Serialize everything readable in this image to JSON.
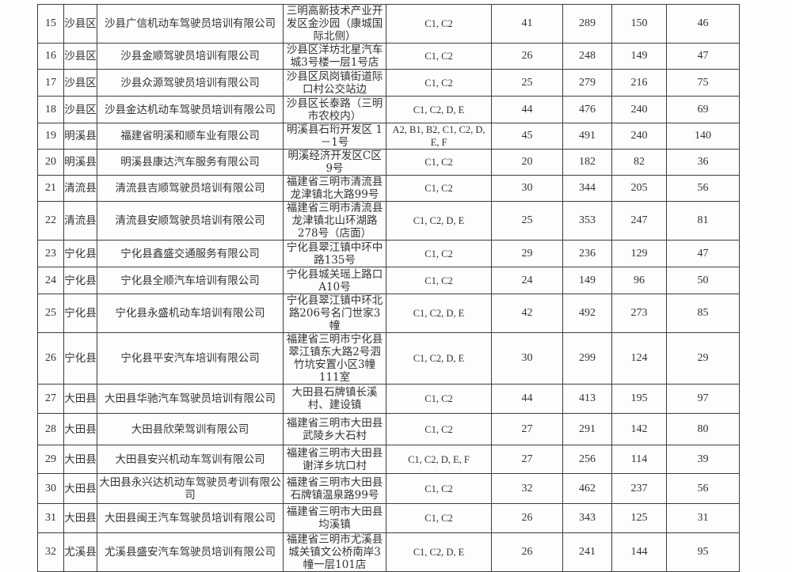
{
  "rows": [
    {
      "no": "15",
      "district": "沙县区",
      "company": "沙县广信机动车驾驶员培训有限公司",
      "address": "三明高新技术产业开发区金沙园（康城国际北侧）",
      "licenses": "C1, C2",
      "c1": "41",
      "c2": "289",
      "c3": "150",
      "c4": "46"
    },
    {
      "no": "16",
      "district": "沙县区",
      "company": "沙县金顺驾驶员培训有限公司",
      "address": "沙县区洋坊北星汽车城3号楼一层1号店",
      "licenses": "C1, C2",
      "c1": "26",
      "c2": "248",
      "c3": "149",
      "c4": "47"
    },
    {
      "no": "17",
      "district": "沙县区",
      "company": "沙县众源驾驶员培训有限公司",
      "address": "沙县区凤岗镇街道际口村公交站边",
      "licenses": "C1, C2",
      "c1": "25",
      "c2": "279",
      "c3": "216",
      "c4": "75"
    },
    {
      "no": "18",
      "district": "沙县区",
      "company": "沙县金达机动车驾驶员培训有限公司",
      "address": "沙县区长泰路（三明市农校内）",
      "licenses": "C1, C2, D, E",
      "c1": "44",
      "c2": "476",
      "c3": "240",
      "c4": "69"
    },
    {
      "no": "19",
      "district": "明溪县",
      "company": "福建省明溪和顺车业有限公司",
      "address": "明溪县石珩开发区 1 －1号",
      "licenses": "A2, B1, B2, C1, C2, D, E, F",
      "c1": "45",
      "c2": "491",
      "c3": "240",
      "c4": "140"
    },
    {
      "no": "20",
      "district": "明溪县",
      "company": "明溪县康达汽车服务有限公司",
      "address": "明溪经济开发区C区9号",
      "licenses": "C1, C2",
      "c1": "20",
      "c2": "182",
      "c3": "82",
      "c4": "36"
    },
    {
      "no": "21",
      "district": "清流县",
      "company": "清流县吉顺驾驶员培训有限公司",
      "address": "福建省三明市清流县龙津镇北大路99号",
      "licenses": "C1, C2",
      "c1": "30",
      "c2": "344",
      "c3": "205",
      "c4": "56"
    },
    {
      "no": "22",
      "district": "清流县",
      "company": "清流县安顺驾驶员培训有限公司",
      "address": "福建省三明市清流县龙津镇北山环湖路278号（店面）",
      "licenses": "C1, C2, D, E",
      "c1": "25",
      "c2": "353",
      "c3": "247",
      "c4": "81"
    },
    {
      "no": "23",
      "district": "宁化县",
      "company": "宁化县鑫盛交通服务有限公司",
      "address": "宁化县翠江镇中环中路135号",
      "licenses": "C1, C2",
      "c1": "29",
      "c2": "236",
      "c3": "129",
      "c4": "47"
    },
    {
      "no": "24",
      "district": "宁化县",
      "company": "宁化县全顺汽车培训有限公司",
      "address": "宁化县城关瑶上路口A10号",
      "licenses": "C1, C2",
      "c1": "24",
      "c2": "149",
      "c3": "96",
      "c4": "50"
    },
    {
      "no": "25",
      "district": "宁化县",
      "company": "宁化县永盛机动车培训有限公司",
      "address": "宁化县翠江镇中环北路206号名门世家3幢",
      "licenses": "C1, C2, D, E",
      "c1": "42",
      "c2": "492",
      "c3": "273",
      "c4": "85"
    },
    {
      "no": "26",
      "district": "宁化县",
      "company": "宁化县平安汽车培训有限公司",
      "address": "福建省三明市宁化县翠江镇东大路2号泗竹坑安置小区3幢111室",
      "licenses": "C1, C2, D, E",
      "c1": "30",
      "c2": "299",
      "c3": "124",
      "c4": "29"
    },
    {
      "no": "27",
      "district": "大田县",
      "company": "大田县华驰汽车驾驶员培训有限公司",
      "address": "大田县石牌镇长溪村、建设镇",
      "licenses": "C1, C2",
      "c1": "44",
      "c2": "413",
      "c3": "195",
      "c4": "97"
    },
    {
      "no": "28",
      "district": "大田县",
      "company": "大田县欣荣驾训有限公司",
      "address": "福建省三明市大田县武陵乡大石村",
      "licenses": "C1, C2",
      "c1": "27",
      "c2": "291",
      "c3": "142",
      "c4": "80"
    },
    {
      "no": "29",
      "district": "大田县",
      "company": "大田县安兴机动车驾训有限公司",
      "address": "福建省三明市大田县谢洋乡坑口村",
      "licenses": "C1, C2, D, E, F",
      "c1": "27",
      "c2": "256",
      "c3": "114",
      "c4": "39"
    },
    {
      "no": "30",
      "district": "大田县",
      "company": "大田县永兴达机动车驾驶员考训有限公司",
      "address": "福建省三明市大田县石牌镇温泉路99号",
      "licenses": "C1, C2",
      "c1": "32",
      "c2": "462",
      "c3": "237",
      "c4": "56"
    },
    {
      "no": "31",
      "district": "大田县",
      "company": "大田县闽王汽车驾驶员培训有限公司",
      "address": "福建省三明市大田县均溪镇",
      "licenses": "C1, C2",
      "c1": "26",
      "c2": "343",
      "c3": "125",
      "c4": "31"
    },
    {
      "no": "32",
      "district": "尤溪县",
      "company": "尤溪县盛安汽车驾驶员培训有限公司",
      "address": "福建省三明市尤溪县城关镇文公桥南岸3幢一层101店",
      "licenses": "C1, C2, D, E",
      "c1": "26",
      "c2": "241",
      "c3": "144",
      "c4": "95"
    }
  ]
}
